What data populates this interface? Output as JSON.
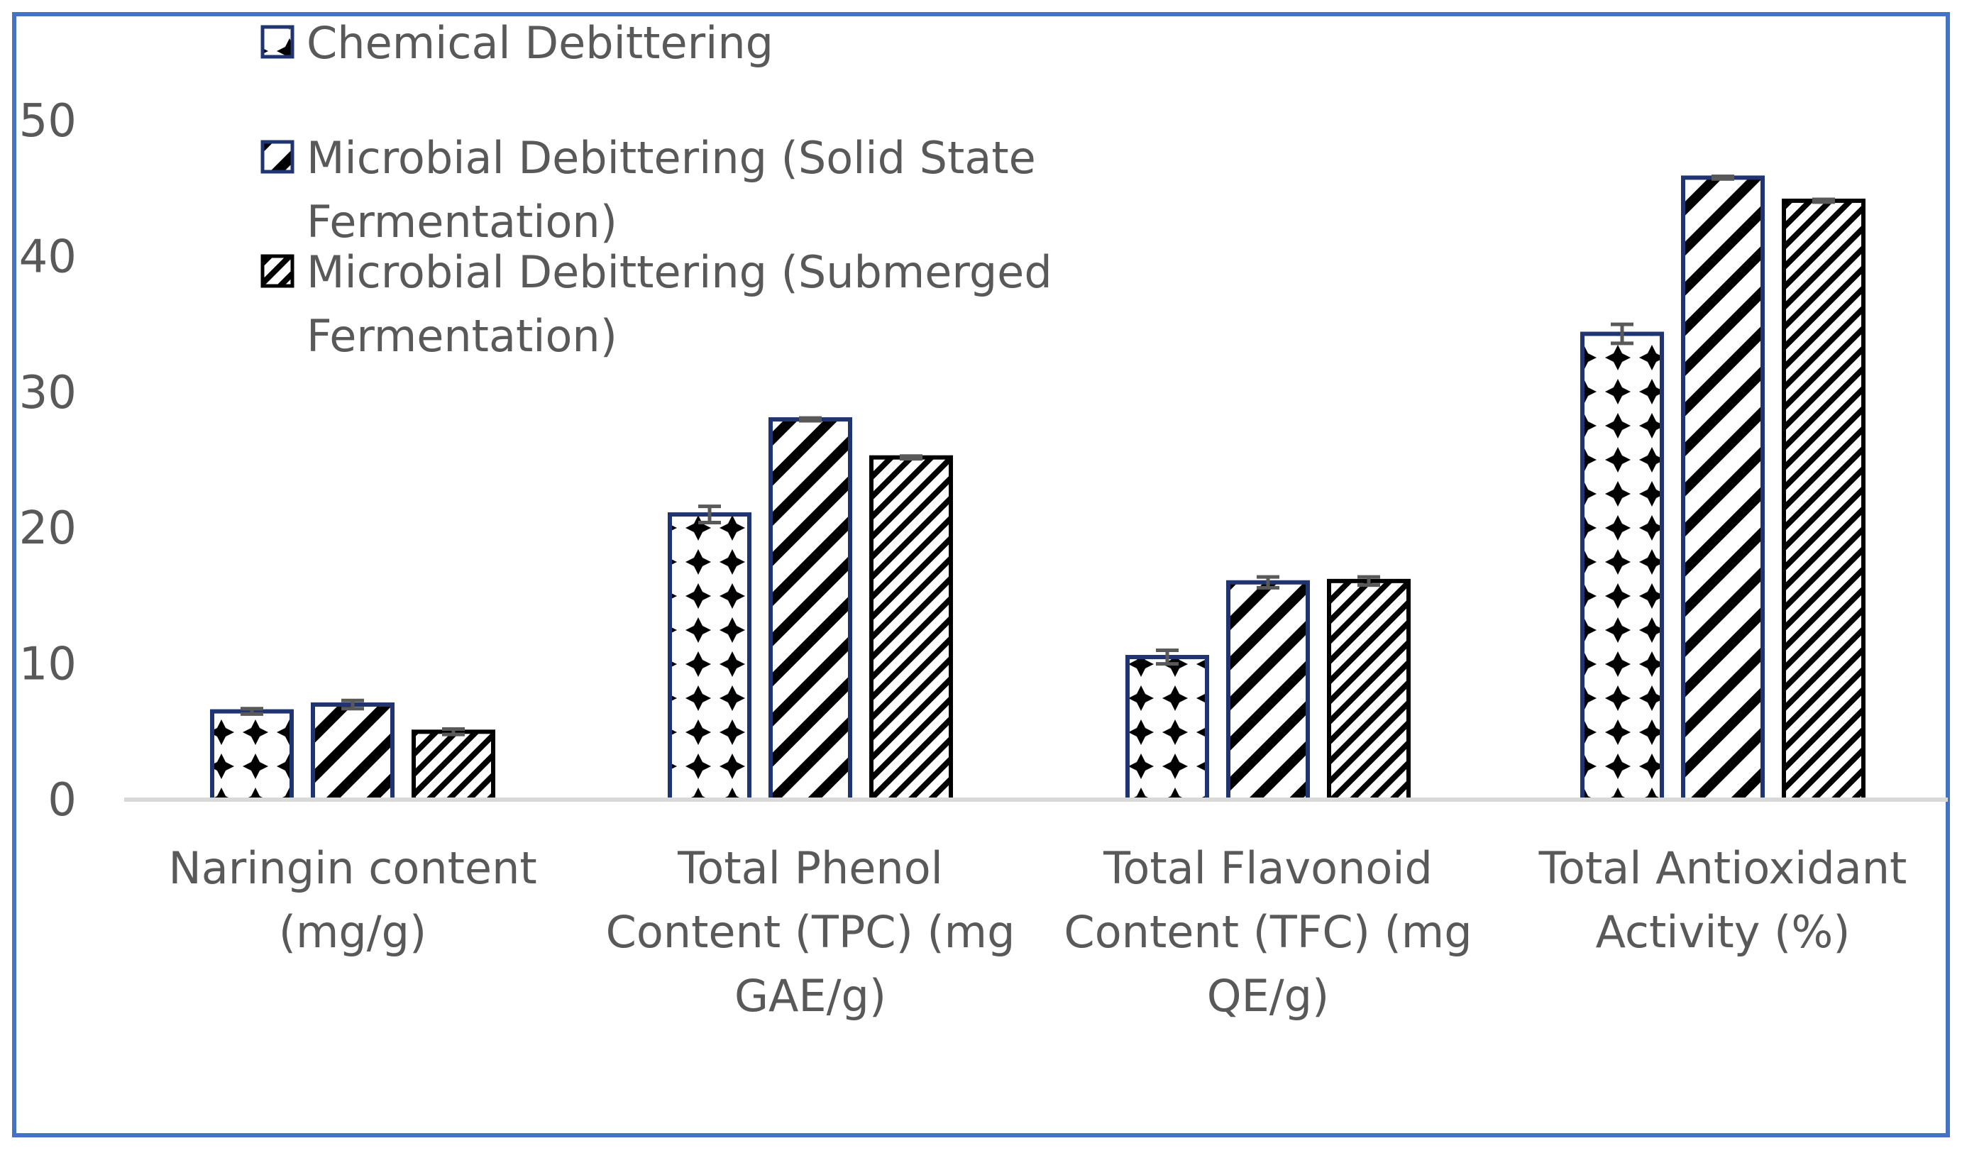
{
  "chart_data": {
    "type": "bar",
    "title": "",
    "xlabel": "",
    "ylabel": "",
    "ylim": [
      0,
      50
    ],
    "yticks": [
      0,
      10,
      20,
      30,
      40,
      50
    ],
    "grid": false,
    "legend_position": "top-left",
    "categories": [
      [
        "Naringin content",
        "(mg/g)"
      ],
      [
        "Total Phenol",
        "Content (TPC) (mg",
        "GAE/g)"
      ],
      [
        "Total Flavonoid",
        "Content (TFC) (mg",
        "QE/g)"
      ],
      [
        "Total Antioxidant",
        "Activity (%)"
      ]
    ],
    "series": [
      {
        "name": [
          "Chemical Debittering"
        ],
        "pattern": "diamonds",
        "values": [
          6.5,
          21.0,
          10.5,
          34.3
        ],
        "errors": [
          0.2,
          0.6,
          0.5,
          0.7
        ]
      },
      {
        "name": [
          "Microbial Debittering (Solid State",
          "Fermentation)"
        ],
        "pattern": "wide-diagonal",
        "values": [
          7.0,
          28.0,
          16.0,
          45.8
        ],
        "errors": [
          0.3,
          0.1,
          0.4,
          0.1
        ]
      },
      {
        "name": [
          "Microbial Debittering (Submerged",
          "Fermentation)"
        ],
        "pattern": "narrow-diagonal",
        "values": [
          5.0,
          25.2,
          16.1,
          44.1
        ],
        "errors": [
          0.2,
          0.1,
          0.3,
          0.1
        ]
      }
    ]
  },
  "colors": {
    "frame": "#4472c4",
    "bar_outline_chemical": "#1f3470",
    "bar_outline_microbial": "#000000",
    "axis": "#d9d9d9",
    "text": "#595959",
    "error_bar": "#595959"
  }
}
